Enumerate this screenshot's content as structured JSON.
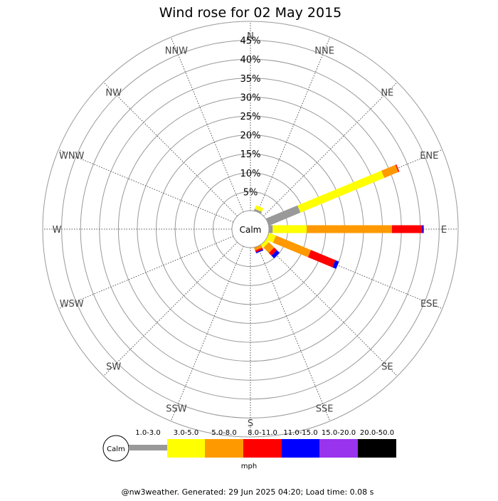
{
  "chart_data": {
    "type": "wind-rose",
    "title": "Wind rose for 02 May 2015",
    "calm_label": "Calm",
    "directions": [
      "N",
      "NNE",
      "NE",
      "ENE",
      "E",
      "ESE",
      "SE",
      "SSE",
      "S",
      "SSW",
      "SW",
      "WSW",
      "W",
      "WNW",
      "NW",
      "NNW"
    ],
    "radial_ticks": [
      "5%",
      "10%",
      "15%",
      "20%",
      "25%",
      "30%",
      "35%",
      "40%",
      "45%"
    ],
    "radial_max": 50,
    "speed_bins": [
      {
        "label": "1.0-3.0",
        "color": "#999999"
      },
      {
        "label": "3.0-5.0",
        "color": "#ffff00"
      },
      {
        "label": "5.0-8.0",
        "color": "#ff9900"
      },
      {
        "label": "8.0-11.0",
        "color": "#ff0000"
      },
      {
        "label": "11.0-15.0",
        "color": "#0000ff"
      },
      {
        "label": "15.0-20.0",
        "color": "#9933ee"
      },
      {
        "label": "20.0-50.0",
        "color": "#000000"
      }
    ],
    "series": [
      {
        "direction": "NNE",
        "values": [
          0.5,
          1.0,
          0,
          0,
          0,
          0,
          0
        ]
      },
      {
        "direction": "ENE",
        "values": [
          9.0,
          24.0,
          4.0,
          0.3,
          0,
          0,
          0
        ]
      },
      {
        "direction": "E",
        "values": [
          1.0,
          9.0,
          22.5,
          8.0,
          0.4,
          0,
          0
        ]
      },
      {
        "direction": "ESE",
        "values": [
          0,
          2.0,
          10.0,
          7.0,
          1.0,
          0,
          0
        ]
      },
      {
        "direction": "SE",
        "values": [
          0,
          1.0,
          2.0,
          1.0,
          1.0,
          0,
          0
        ]
      },
      {
        "direction": "SSE",
        "values": [
          0,
          0,
          0.8,
          0.5,
          0.3,
          0,
          0
        ]
      }
    ],
    "legend_unit": "mph"
  },
  "footer": "@nw3weather. Generated: 29 Jun 2025 04:20; Load time: 0.08 s"
}
